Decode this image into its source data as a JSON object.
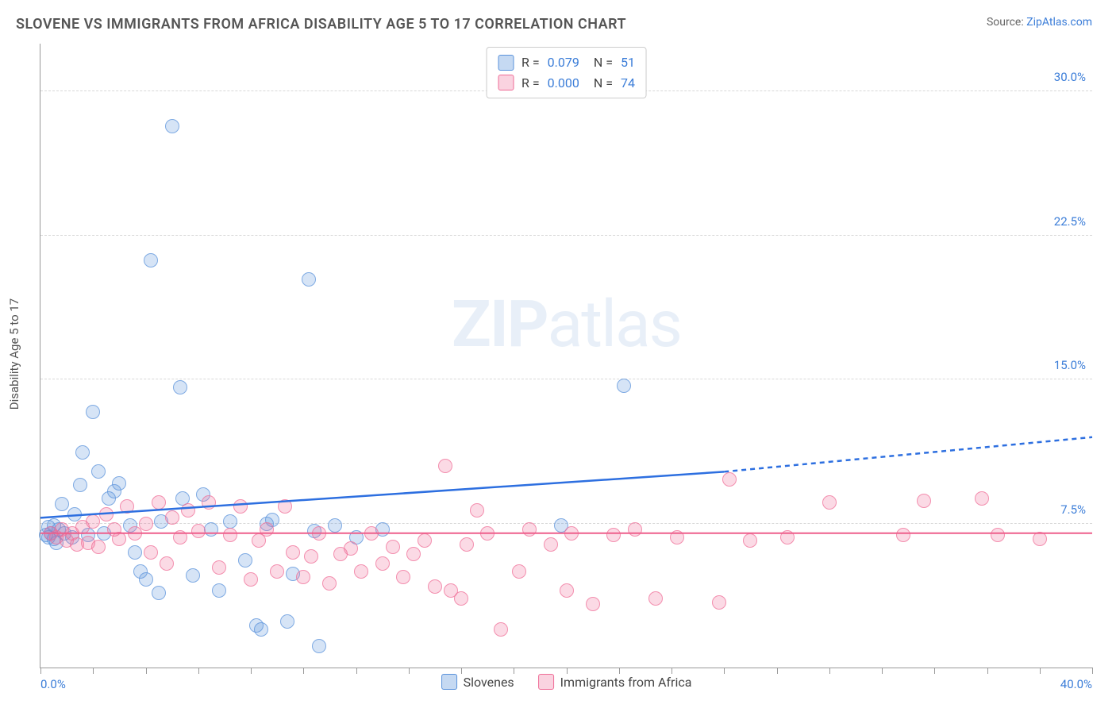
{
  "header": {
    "title": "SLOVENE VS IMMIGRANTS FROM AFRICA DISABILITY AGE 5 TO 17 CORRELATION CHART",
    "source_prefix": "Source: ",
    "source_link": "ZipAtlas.com"
  },
  "watermark": {
    "bold": "ZIP",
    "light": "atlas"
  },
  "chart": {
    "type": "scatter-with-regression",
    "yaxis_title": "Disability Age 5 to 17",
    "xlim": [
      0,
      40
    ],
    "ylim": [
      0,
      32.5
    ],
    "xlabel_min": "0.0%",
    "xlabel_max": "40.0%",
    "yticks": [
      {
        "v": 7.5,
        "label": "7.5%"
      },
      {
        "v": 15.0,
        "label": "15.0%"
      },
      {
        "v": 22.5,
        "label": "22.5%"
      },
      {
        "v": 30.0,
        "label": "30.0%"
      }
    ],
    "xtick_minor_step": 2,
    "background_color": "#ffffff",
    "grid_color": "#d8d8d8",
    "marker_radius": 9,
    "marker_fill_opacity": 0.25,
    "marker_stroke_opacity": 0.7,
    "legend_top": [
      {
        "r_label": "R =",
        "r": "0.079",
        "n_label": "N =",
        "n": "51",
        "series": "s1"
      },
      {
        "r_label": "R =",
        "r": "0.000",
        "n_label": "N =",
        "n": "74",
        "series": "s2"
      }
    ],
    "legend_bottom": [
      {
        "label": "Slovenes",
        "series": "s1"
      },
      {
        "label": "Immigrants from Africa",
        "series": "s2"
      }
    ],
    "series": {
      "s1": {
        "color": "#5a92db",
        "swatch_fill": "rgba(90,146,219,0.35)",
        "swatch_border": "#5a92db",
        "trend": {
          "y_at_x0": 7.8,
          "y_at_solid_end": 10.2,
          "solid_end_x": 26,
          "y_at_xmax": 12.0,
          "line_color": "#2d6fe0",
          "line_width": 2.5
        },
        "points": [
          [
            0.2,
            6.9
          ],
          [
            0.3,
            7.3
          ],
          [
            0.3,
            6.8
          ],
          [
            0.4,
            7.0
          ],
          [
            0.5,
            6.7
          ],
          [
            0.5,
            7.4
          ],
          [
            0.6,
            6.5
          ],
          [
            0.7,
            7.2
          ],
          [
            0.8,
            8.5
          ],
          [
            0.9,
            7.0
          ],
          [
            1.2,
            6.8
          ],
          [
            1.3,
            8.0
          ],
          [
            1.5,
            9.5
          ],
          [
            1.6,
            11.2
          ],
          [
            1.8,
            6.9
          ],
          [
            2.0,
            13.3
          ],
          [
            2.2,
            10.2
          ],
          [
            2.4,
            7.0
          ],
          [
            2.6,
            8.8
          ],
          [
            2.8,
            9.2
          ],
          [
            3.0,
            9.6
          ],
          [
            3.4,
            7.4
          ],
          [
            3.6,
            6.0
          ],
          [
            3.8,
            5.0
          ],
          [
            4.0,
            4.6
          ],
          [
            4.2,
            21.2
          ],
          [
            4.5,
            3.9
          ],
          [
            4.6,
            7.6
          ],
          [
            5.0,
            28.2
          ],
          [
            5.3,
            14.6
          ],
          [
            5.4,
            8.8
          ],
          [
            5.8,
            4.8
          ],
          [
            6.2,
            9.0
          ],
          [
            6.5,
            7.2
          ],
          [
            6.8,
            4.0
          ],
          [
            7.2,
            7.6
          ],
          [
            7.8,
            5.6
          ],
          [
            8.2,
            2.2
          ],
          [
            8.4,
            2.0
          ],
          [
            8.6,
            7.5
          ],
          [
            8.8,
            7.7
          ],
          [
            9.4,
            2.4
          ],
          [
            9.6,
            4.9
          ],
          [
            10.2,
            20.2
          ],
          [
            10.4,
            7.1
          ],
          [
            10.6,
            1.1
          ],
          [
            11.2,
            7.4
          ],
          [
            12.0,
            6.8
          ],
          [
            13.0,
            7.2
          ],
          [
            19.8,
            7.4
          ],
          [
            22.2,
            14.7
          ]
        ]
      },
      "s2": {
        "color": "#ef6d97",
        "swatch_fill": "rgba(239,109,151,0.3)",
        "swatch_border": "#ef6d97",
        "trend": {
          "y_at_x0": 7.0,
          "y_at_solid_end": 7.0,
          "solid_end_x": 40,
          "y_at_xmax": 7.0,
          "line_color": "#ee5f8c",
          "line_width": 2
        },
        "points": [
          [
            0.4,
            7.0
          ],
          [
            0.6,
            6.8
          ],
          [
            0.8,
            7.2
          ],
          [
            1.0,
            6.6
          ],
          [
            1.2,
            7.0
          ],
          [
            1.4,
            6.4
          ],
          [
            1.6,
            7.3
          ],
          [
            1.8,
            6.5
          ],
          [
            2.0,
            7.6
          ],
          [
            2.2,
            6.3
          ],
          [
            2.5,
            8.0
          ],
          [
            2.8,
            7.2
          ],
          [
            3.0,
            6.7
          ],
          [
            3.3,
            8.4
          ],
          [
            3.6,
            7.0
          ],
          [
            4.0,
            7.5
          ],
          [
            4.2,
            6.0
          ],
          [
            4.5,
            8.6
          ],
          [
            4.8,
            5.4
          ],
          [
            5.0,
            7.8
          ],
          [
            5.3,
            6.8
          ],
          [
            5.6,
            8.2
          ],
          [
            6.0,
            7.1
          ],
          [
            6.4,
            8.6
          ],
          [
            6.8,
            5.2
          ],
          [
            7.2,
            6.9
          ],
          [
            7.6,
            8.4
          ],
          [
            8.0,
            4.6
          ],
          [
            8.3,
            6.6
          ],
          [
            8.6,
            7.2
          ],
          [
            9.0,
            5.0
          ],
          [
            9.3,
            8.4
          ],
          [
            9.6,
            6.0
          ],
          [
            10.0,
            4.7
          ],
          [
            10.3,
            5.8
          ],
          [
            10.6,
            7.0
          ],
          [
            11.0,
            4.4
          ],
          [
            11.4,
            5.9
          ],
          [
            11.8,
            6.2
          ],
          [
            12.2,
            5.0
          ],
          [
            12.6,
            7.0
          ],
          [
            13.0,
            5.4
          ],
          [
            13.4,
            6.3
          ],
          [
            13.8,
            4.7
          ],
          [
            14.2,
            5.9
          ],
          [
            14.6,
            6.6
          ],
          [
            15.0,
            4.2
          ],
          [
            15.4,
            10.5
          ],
          [
            15.6,
            4.0
          ],
          [
            16.0,
            3.6
          ],
          [
            16.2,
            6.4
          ],
          [
            16.6,
            8.2
          ],
          [
            17.0,
            7.0
          ],
          [
            17.5,
            2.0
          ],
          [
            18.2,
            5.0
          ],
          [
            18.6,
            7.2
          ],
          [
            19.4,
            6.4
          ],
          [
            20.0,
            4.0
          ],
          [
            20.2,
            7.0
          ],
          [
            21.0,
            3.3
          ],
          [
            21.8,
            6.9
          ],
          [
            22.6,
            7.2
          ],
          [
            23.4,
            3.6
          ],
          [
            24.2,
            6.8
          ],
          [
            25.8,
            3.4
          ],
          [
            26.2,
            9.8
          ],
          [
            27.0,
            6.6
          ],
          [
            28.4,
            6.8
          ],
          [
            30.0,
            8.6
          ],
          [
            32.8,
            6.9
          ],
          [
            33.6,
            8.7
          ],
          [
            35.8,
            8.8
          ],
          [
            36.4,
            6.9
          ],
          [
            38.0,
            6.7
          ]
        ]
      }
    }
  }
}
